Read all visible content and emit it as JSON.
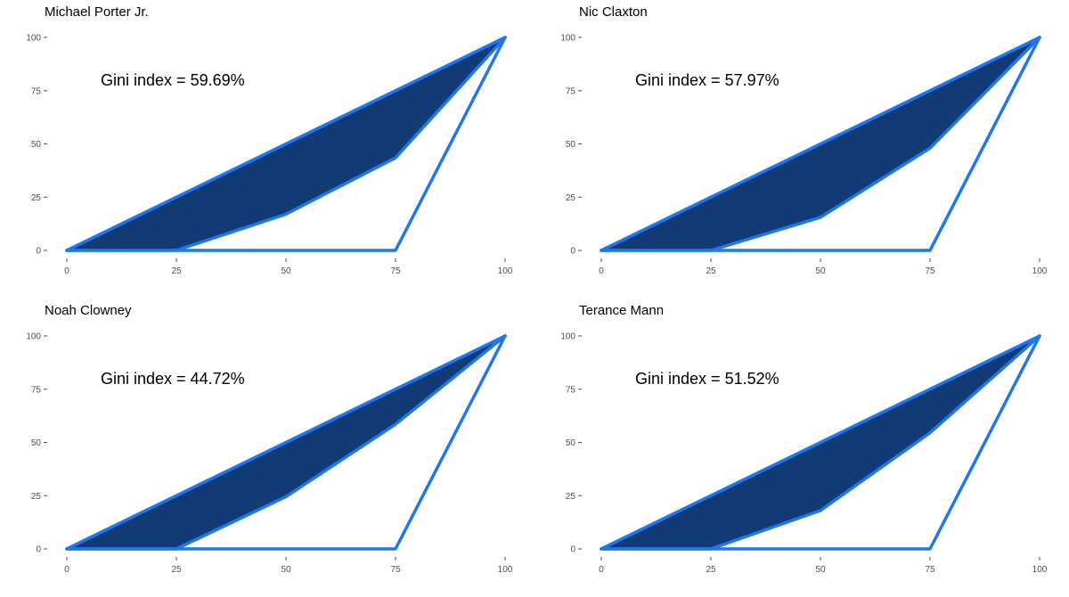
{
  "chart_data": [
    {
      "type": "area",
      "title": "Michael Porter Jr.",
      "annotation_prefix": "Gini index = ",
      "gini_display": "59.69%",
      "xlim": [
        0,
        100
      ],
      "ylim": [
        0,
        100
      ],
      "x_ticks": [
        "0",
        "25",
        "50",
        "75",
        "100"
      ],
      "y_ticks": [
        "0",
        "25",
        "50",
        "75",
        "100"
      ],
      "equality_line": {
        "x": [
          0,
          100
        ],
        "y": [
          0,
          100
        ]
      },
      "lorenz_curve": {
        "x": [
          0,
          25,
          50,
          75,
          100
        ],
        "y": [
          0,
          0,
          17,
          43.5,
          100
        ]
      },
      "perfect_inequality_line": {
        "x": [
          0,
          75,
          100
        ],
        "y": [
          0,
          0,
          100
        ]
      }
    },
    {
      "type": "area",
      "title": "Nic Claxton",
      "annotation_prefix": "Gini index = ",
      "gini_display": "57.97%",
      "xlim": [
        0,
        100
      ],
      "ylim": [
        0,
        100
      ],
      "x_ticks": [
        "0",
        "25",
        "50",
        "75",
        "100"
      ],
      "y_ticks": [
        "0",
        "25",
        "50",
        "75",
        "100"
      ],
      "equality_line": {
        "x": [
          0,
          100
        ],
        "y": [
          0,
          100
        ]
      },
      "lorenz_curve": {
        "x": [
          0,
          25,
          50,
          75,
          100
        ],
        "y": [
          0,
          0,
          15.5,
          48,
          100
        ]
      },
      "perfect_inequality_line": {
        "x": [
          0,
          75,
          100
        ],
        "y": [
          0,
          0,
          100
        ]
      }
    },
    {
      "type": "area",
      "title": "Noah Clowney",
      "annotation_prefix": "Gini index = ",
      "gini_display": "44.72%",
      "xlim": [
        0,
        100
      ],
      "ylim": [
        0,
        100
      ],
      "x_ticks": [
        "0",
        "25",
        "50",
        "75",
        "100"
      ],
      "y_ticks": [
        "0",
        "25",
        "50",
        "75",
        "100"
      ],
      "equality_line": {
        "x": [
          0,
          100
        ],
        "y": [
          0,
          100
        ]
      },
      "lorenz_curve": {
        "x": [
          0,
          25,
          50,
          75,
          100
        ],
        "y": [
          0,
          0,
          24.5,
          58.5,
          100
        ]
      },
      "perfect_inequality_line": {
        "x": [
          0,
          75,
          100
        ],
        "y": [
          0,
          0,
          100
        ]
      }
    },
    {
      "type": "area",
      "title": "Terance Mann",
      "annotation_prefix": "Gini index = ",
      "gini_display": "51.52%",
      "xlim": [
        0,
        100
      ],
      "ylim": [
        0,
        100
      ],
      "x_ticks": [
        "0",
        "25",
        "50",
        "75",
        "100"
      ],
      "y_ticks": [
        "0",
        "25",
        "50",
        "75",
        "100"
      ],
      "equality_line": {
        "x": [
          0,
          100
        ],
        "y": [
          0,
          100
        ]
      },
      "lorenz_curve": {
        "x": [
          0,
          25,
          50,
          75,
          100
        ],
        "y": [
          0,
          0,
          18,
          54.5,
          100
        ]
      },
      "perfect_inequality_line": {
        "x": [
          0,
          75,
          100
        ],
        "y": [
          0,
          0,
          100
        ]
      }
    }
  ],
  "colors": {
    "fill": "#123a75",
    "line": "#1f77f0",
    "text": "#000000",
    "tick": "#4d4d4d"
  }
}
